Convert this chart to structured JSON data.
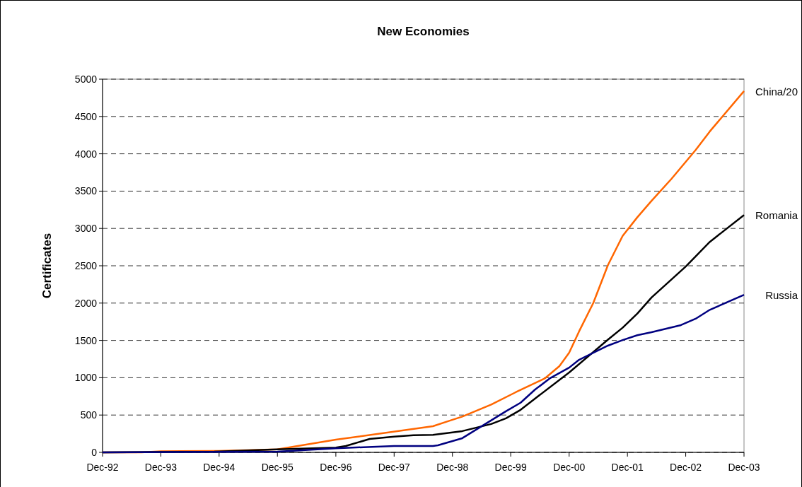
{
  "chart_data": {
    "type": "line",
    "title": "New Economies",
    "ylabel": "Certificates",
    "xlim": [
      "1992-12",
      "2003-12"
    ],
    "xticks": [
      {
        "value": "1992-12",
        "label": "Dec-92"
      },
      {
        "value": "1993-12",
        "label": "Dec-93"
      },
      {
        "value": "1994-12",
        "label": "Dec-94"
      },
      {
        "value": "1995-12",
        "label": "Dec-95"
      },
      {
        "value": "1996-12",
        "label": "Dec-96"
      },
      {
        "value": "1997-12",
        "label": "Dec-97"
      },
      {
        "value": "1998-12",
        "label": "Dec-98"
      },
      {
        "value": "1999-12",
        "label": "Dec-99"
      },
      {
        "value": "2000-12",
        "label": "Dec-00"
      },
      {
        "value": "2001-12",
        "label": "Dec-01"
      },
      {
        "value": "2002-12",
        "label": "Dec-02"
      },
      {
        "value": "2003-12",
        "label": "Dec-03"
      }
    ],
    "ylim": [
      0,
      5000
    ],
    "yticks": [
      0,
      500,
      1000,
      1500,
      2000,
      2500,
      3000,
      3500,
      4000,
      4500,
      5000
    ],
    "grid": "y",
    "legend": false,
    "marker": "none",
    "series": [
      {
        "name": "China/20",
        "color": "#ff6600",
        "x": [
          "1992-12",
          "1993-08",
          "1993-12",
          "1994-12",
          "1995-12",
          "1996-12",
          "1998-08",
          "1998-11",
          "1999-02",
          "1999-08",
          "2000-01",
          "2000-07",
          "2000-10",
          "2000-12",
          "2001-02",
          "2001-05",
          "2001-08",
          "2001-11",
          "2002-02",
          "2002-05",
          "2002-09",
          "2003-02",
          "2003-05",
          "2003-12"
        ],
        "values": [
          0,
          0,
          15,
          20,
          40,
          170,
          350,
          415,
          480,
          640,
          805,
          990,
          1155,
          1335,
          1620,
          2000,
          2510,
          2900,
          3150,
          3370,
          3660,
          4050,
          4300,
          4840
        ]
      },
      {
        "name": "Romania",
        "color": "#000000",
        "x": [
          "1992-12",
          "1994-11",
          "1995-12",
          "1996-12",
          "1997-02",
          "1997-07",
          "1997-12",
          "1998-04",
          "1998-08",
          "1999-02",
          "1999-08",
          "1999-11",
          "2000-02",
          "2000-05",
          "2000-12",
          "2001-08",
          "2001-11",
          "2002-02",
          "2002-05",
          "2002-12",
          "2003-05",
          "2003-12"
        ],
        "values": [
          0,
          10,
          40,
          65,
          85,
          180,
          210,
          230,
          235,
          285,
          380,
          455,
          570,
          720,
          1070,
          1510,
          1670,
          1860,
          2075,
          2490,
          2820,
          3180
        ]
      },
      {
        "name": "Russia",
        "color": "#000080",
        "x": [
          "1992-12",
          "1995-12",
          "1996-12",
          "1997-12",
          "1998-08",
          "1998-09",
          "1999-02",
          "1999-11",
          "2000-02",
          "2000-05",
          "2000-08",
          "2000-12",
          "2001-02",
          "2001-05",
          "2001-08",
          "2001-11",
          "2002-02",
          "2002-05",
          "2002-11",
          "2003-02",
          "2003-05",
          "2003-12"
        ],
        "values": [
          0,
          10,
          55,
          85,
          85,
          95,
          190,
          550,
          665,
          840,
          990,
          1135,
          1240,
          1335,
          1430,
          1505,
          1570,
          1610,
          1705,
          1790,
          1910,
          2110
        ]
      }
    ]
  }
}
